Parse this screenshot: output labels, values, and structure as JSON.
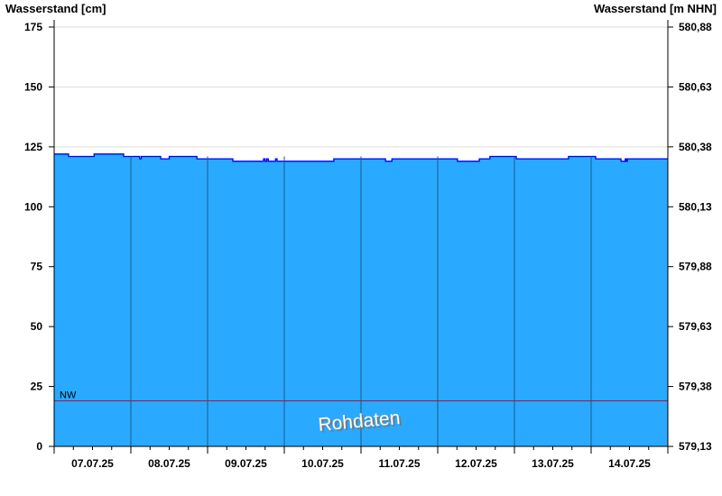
{
  "chart_data": {
    "type": "area",
    "ylabel_left": "Wasserstand [cm]",
    "ylabel_right": "Wasserstand [m NHN]",
    "ylim": [
      0,
      175
    ],
    "yticks": [
      0,
      25,
      50,
      75,
      100,
      125,
      150,
      175
    ],
    "yticks_right": [
      "579,13",
      "579,38",
      "579,63",
      "579,88",
      "580,13",
      "580,38",
      "580,63",
      "580,88"
    ],
    "xlim": [
      "2025-07-07T00:00",
      "2025-07-15T00:00"
    ],
    "xtick_labels": [
      "07.07.25",
      "08.07.25",
      "09.07.25",
      "10.07.25",
      "11.07.25",
      "12.07.25",
      "13.07.25",
      "14.07.25"
    ],
    "grid": true,
    "fill_color": "#29a9ff",
    "line_color": "#0000ee",
    "threshold": {
      "label": "NW",
      "value": 19,
      "color": "#b0103a"
    },
    "watermark": "Rohdaten",
    "series": [
      {
        "points": [
          [
            "2025-07-07T00:00",
            122
          ],
          [
            "2025-07-07T04:30",
            121
          ],
          [
            "2025-07-07T12:30",
            122
          ],
          [
            "2025-07-07T21:45",
            121
          ],
          [
            "2025-07-08T02:45",
            120
          ],
          [
            "2025-07-08T03:15",
            121
          ],
          [
            "2025-07-08T09:20",
            120
          ],
          [
            "2025-07-08T12:00",
            121
          ],
          [
            "2025-07-08T20:40",
            120
          ],
          [
            "2025-07-09T07:55",
            119
          ],
          [
            "2025-07-09T17:30",
            120
          ],
          [
            "2025-07-09T18:00",
            119
          ],
          [
            "2025-07-09T18:30",
            120
          ],
          [
            "2025-07-09T19:00",
            119
          ],
          [
            "2025-07-09T21:15",
            120
          ],
          [
            "2025-07-09T21:45",
            119
          ],
          [
            "2025-07-10T15:30",
            120
          ],
          [
            "2025-07-11T07:40",
            119
          ],
          [
            "2025-07-11T09:40",
            120
          ],
          [
            "2025-07-12T06:10",
            119
          ],
          [
            "2025-07-12T13:00",
            120
          ],
          [
            "2025-07-12T16:20",
            121
          ],
          [
            "2025-07-13T00:35",
            120
          ],
          [
            "2025-07-13T16:55",
            121
          ],
          [
            "2025-07-14T01:25",
            120
          ],
          [
            "2025-07-14T09:20",
            119
          ],
          [
            "2025-07-14T10:40",
            120
          ],
          [
            "2025-07-14T11:00",
            119
          ],
          [
            "2025-07-14T11:20",
            120
          ],
          [
            "2025-07-15T00:00",
            120
          ]
        ]
      }
    ]
  }
}
